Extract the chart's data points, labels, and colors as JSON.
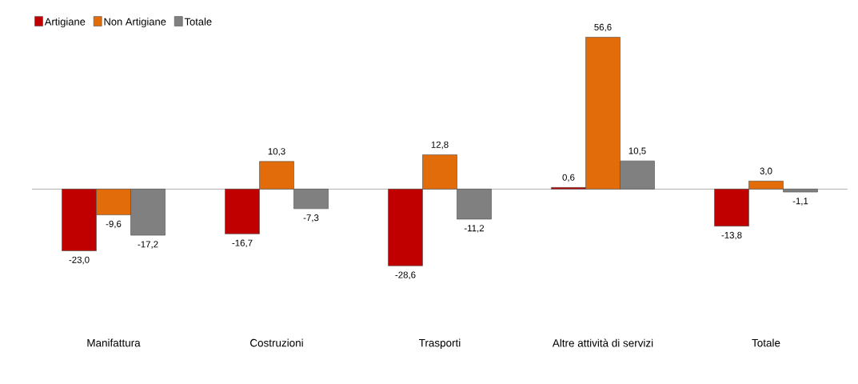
{
  "chart_data": {
    "type": "bar",
    "categories": [
      "Manifattura",
      "Costruzioni",
      "Trasporti",
      "Altre attività di servizi",
      "Totale"
    ],
    "series": [
      {
        "name": "Artigiane",
        "color": "#c00000",
        "values": [
          -23.0,
          -16.7,
          -28.6,
          0.6,
          -13.8
        ],
        "value_labels": [
          "-23,0",
          "-16,7",
          "-28,6",
          "0,6",
          "-13,8"
        ]
      },
      {
        "name": "Non Artigiane",
        "color": "#e36c0a",
        "values": [
          -9.6,
          10.3,
          12.8,
          56.6,
          3.0
        ],
        "value_labels": [
          "-9,6",
          "10,3",
          "12,8",
          "56,6",
          "3,0"
        ]
      },
      {
        "name": "Totale",
        "color": "#808080",
        "values": [
          -17.2,
          -7.3,
          -11.2,
          10.5,
          -1.1
        ],
        "value_labels": [
          "-17,2",
          "-7,3",
          "-11,2",
          "10,5",
          "-1,1"
        ]
      }
    ],
    "legend": "top left"
  }
}
